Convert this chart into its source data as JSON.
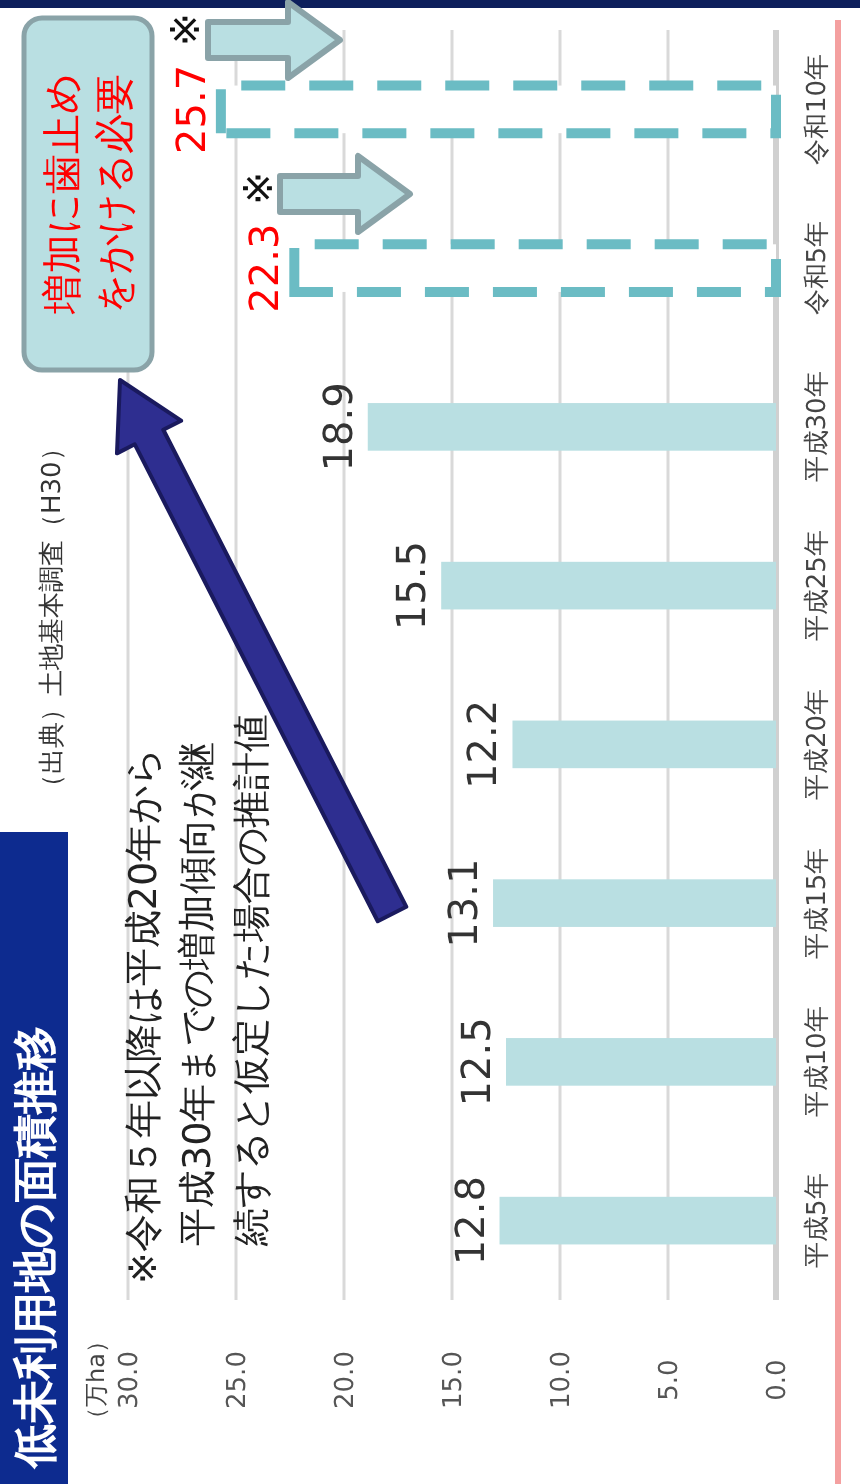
{
  "chart_data": {
    "type": "bar",
    "title": "低未利用地の面積推移",
    "orientation": "horizontal",
    "categories": [
      "令和10年",
      "令和5年",
      "平成30年",
      "平成25年",
      "平成20年",
      "平成15年",
      "平成10年",
      "平成5年"
    ],
    "series": [
      {
        "color": "#b9dfe2",
        "values": [
          null,
          null,
          18.9,
          15.5,
          12.2,
          13.1,
          12.5,
          12.8
        ]
      },
      {
        "color": "#6bbcc4",
        "line_style": "dashed",
        "values": [
          25.7,
          22.3,
          null,
          null,
          null,
          null,
          null,
          null
        ]
      }
    ],
    "data_labels": true,
    "xlim": [
      30,
      0
    ],
    "xticks": [
      {
        "value": 30,
        "label": "30.0"
      },
      {
        "value": 25,
        "label": "25.0"
      },
      {
        "value": 20,
        "label": "20.0"
      },
      {
        "value": 15,
        "label": "15.0"
      },
      {
        "value": 10,
        "label": "10.0"
      },
      {
        "value": 5,
        "label": "5.0"
      },
      {
        "value": 0,
        "label": "0.0"
      }
    ],
    "grid": "x",
    "annotations": [
      "※令和５年以降は平成20年から平成30年までの増加傾向が継続すると仮定した場合の推計値",
      "（出典）土地基本調査（H30）",
      "増加に歯止めをかける必要",
      "（万ha）",
      "※",
      "※"
    ]
  }
}
